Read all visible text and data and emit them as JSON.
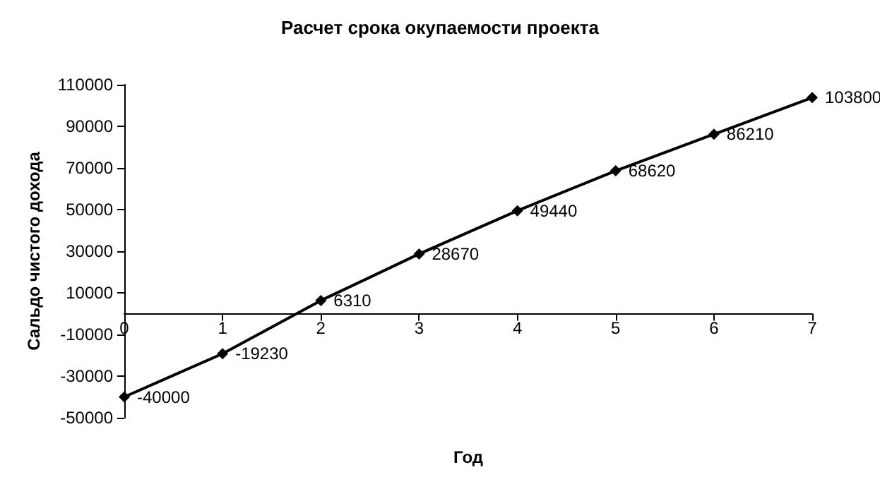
{
  "chart_data": {
    "type": "line",
    "title": "Расчет срока окупаемости проекта",
    "xlabel": "Год",
    "ylabel": "Сальдо чистого дохода",
    "x": [
      0,
      1,
      2,
      3,
      4,
      5,
      6,
      7
    ],
    "series": [
      {
        "color": "#000000",
        "values": [
          -40000,
          -19230,
          6310,
          28670,
          49440,
          68620,
          86210,
          103800
        ]
      }
    ],
    "xlim": [
      0,
      7
    ],
    "xticks": [
      0,
      1,
      2,
      3,
      4,
      5,
      6,
      7
    ],
    "ylim": [
      -50000,
      110000
    ],
    "yticks": [
      -50000,
      -30000,
      -10000,
      10000,
      30000,
      50000,
      70000,
      90000,
      110000
    ],
    "data_labels": true,
    "marker": "diamond",
    "line_style": "solid",
    "grid": false
  }
}
